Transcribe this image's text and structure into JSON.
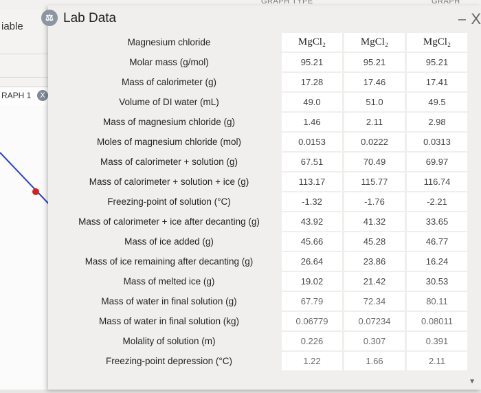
{
  "background": {
    "top_labels": [
      "GRAPH TYPE",
      "GRAPH"
    ],
    "table_label": "iable",
    "tab_label": "RAPH 1",
    "tab_close": "X"
  },
  "dialog": {
    "title": "Lab Data",
    "minimize": "–",
    "close": "X"
  },
  "table": {
    "rows": [
      {
        "label": "Magnesium chloride",
        "values": [
          "MgCl₂",
          "MgCl₂",
          "MgCl₂"
        ]
      },
      {
        "label": "Molar mass (g/mol)",
        "values": [
          "95.21",
          "95.21",
          "95.21"
        ]
      },
      {
        "label": "Mass of calorimeter (g)",
        "values": [
          "17.28",
          "17.46",
          "17.41"
        ]
      },
      {
        "label": "Volume of DI water (mL)",
        "values": [
          "49.0",
          "51.0",
          "49.5"
        ]
      },
      {
        "label": "Mass of magnesium chloride (g)",
        "values": [
          "1.46",
          "2.11",
          "2.98"
        ]
      },
      {
        "label": "Moles of magnesium chloride (mol)",
        "values": [
          "0.0153",
          "0.0222",
          "0.0313"
        ]
      },
      {
        "label": "Mass of calorimeter + solution (g)",
        "values": [
          "67.51",
          "70.49",
          "69.97"
        ]
      },
      {
        "label": "Mass of calorimeter + solution + ice (g)",
        "values": [
          "113.17",
          "115.77",
          "116.74"
        ]
      },
      {
        "label": "Freezing-point of solution (°C)",
        "values": [
          "-1.32",
          "-1.76",
          "-2.21"
        ]
      },
      {
        "label": "Mass of calorimeter + ice after decanting (g)",
        "values": [
          "43.92",
          "41.32",
          "33.65"
        ]
      },
      {
        "label": "Mass of ice added (g)",
        "values": [
          "45.66",
          "45.28",
          "46.77"
        ]
      },
      {
        "label": "Mass of ice remaining after decanting (g)",
        "values": [
          "26.64",
          "23.86",
          "16.24"
        ]
      },
      {
        "label": "Mass of melted ice (g)",
        "values": [
          "19.02",
          "21.42",
          "30.53"
        ]
      },
      {
        "label": "Mass of water in final solution (g)",
        "values": [
          "67.79",
          "72.34",
          "80.11"
        ]
      },
      {
        "label": "Mass of water in final solution (kg)",
        "values": [
          "0.06779",
          "0.07234",
          "0.08011"
        ]
      },
      {
        "label": "Molality of solution (m)",
        "values": [
          "0.226",
          "0.307",
          "0.391"
        ]
      },
      {
        "label": "Freezing-point depression (°C)",
        "values": [
          "1.22",
          "1.66",
          "2.11"
        ]
      }
    ]
  }
}
